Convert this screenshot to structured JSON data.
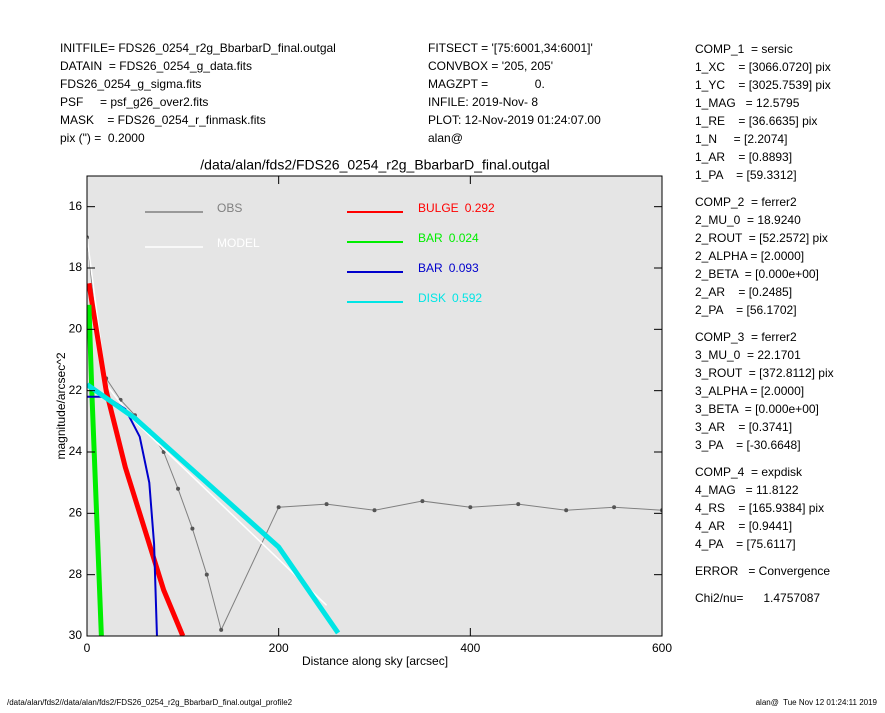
{
  "header": {
    "left": [
      "INITFILE= FDS26_0254_r2g_BbarbarD_final.outgal",
      "DATAIN  = FDS26_0254_g_data.fits",
      "FDS26_0254_g_sigma.fits",
      "PSF     = psf_g26_over2.fits",
      "MASK    = FDS26_0254_r_finmask.fits",
      "pix (\") =  0.2000"
    ],
    "middle": [
      "FITSECT = '[75:6001,34:6001]'",
      "CONVBOX = '205, 205'",
      "MAGZPT =              0.",
      "INFILE: 2019-Nov- 8",
      "PLOT: 12-Nov-2019 01:24:07.00",
      "alan@"
    ]
  },
  "params": [
    [
      "COMP_1  = sersic",
      "1_XC    = [3066.0720] pix",
      "1_YC    = [3025.7539] pix",
      "1_MAG   = 12.5795",
      "1_RE    = [36.6635] pix",
      "1_N     = [2.2074]",
      "1_AR    = [0.8893]",
      "1_PA    = [59.3312]"
    ],
    [
      "COMP_2  = ferrer2",
      "2_MU_0  = 18.9240",
      "2_ROUT  = [52.2572] pix",
      "2_ALPHA = [2.0000]",
      "2_BETA  = [0.000e+00]",
      "2_AR    = [0.2485]",
      "2_PA    = [56.1702]"
    ],
    [
      "COMP_3  = ferrer2",
      "3_MU_0  = 22.1701",
      "3_ROUT  = [372.8112] pix",
      "3_ALPHA = [2.0000]",
      "3_BETA  = [0.000e+00]",
      "3_AR    = [0.3741]",
      "3_PA    = [-30.6648]"
    ],
    [
      "COMP_4  = expdisk",
      "4_MAG   = 11.8122",
      "4_RS    = [165.9384] pix",
      "4_AR    = [0.9441]",
      "4_PA    = [75.6117]"
    ],
    [
      "ERROR   = Convergence"
    ],
    [
      "Chi2/nu=      1.4757087"
    ]
  ],
  "footer": {
    "left": "/data/alan/fds2//data/alan/fds2/FDS26_0254_r2g_BbarbarD_final.outgal_profile2",
    "right": "alan@  Tue Nov 12 01:24:11 2019"
  },
  "chart_data": {
    "type": "line",
    "title": "/data/alan/fds2/FDS26_0254_r2g_BbarbarD_final.outgal",
    "xlabel": "Distance along sky [arcsec]",
    "ylabel": "magnitude/arcsec^2",
    "xlim": [
      0,
      600
    ],
    "xticks": [
      0,
      200,
      400,
      600
    ],
    "ylim": [
      30,
      15
    ],
    "yticks": [
      16,
      18,
      20,
      22,
      24,
      26,
      28,
      30
    ],
    "series": [
      {
        "name": "OBS",
        "color": "#808080",
        "x": [
          0,
          10,
          20,
          35,
          50,
          65,
          80,
          95,
          110,
          125,
          140,
          200,
          250,
          300,
          350,
          400,
          450,
          500,
          550,
          600
        ],
        "values": [
          17,
          20,
          21.6,
          22.3,
          22.8,
          23.3,
          24,
          25.2,
          26.5,
          28,
          29.8,
          25.8,
          25.7,
          25.9,
          25.6,
          25.8,
          25.7,
          25.9,
          25.8,
          25.9
        ]
      },
      {
        "name": "MODEL",
        "color": "#ffffff",
        "x": [
          0,
          20,
          50,
          100,
          150,
          200,
          250
        ],
        "values": [
          17,
          21.8,
          23,
          24.5,
          26,
          27.5,
          29
        ]
      },
      {
        "name": "BULGE",
        "fraction": 0.292,
        "color": "#ff0000",
        "x": [
          2,
          20,
          40,
          60,
          80,
          100
        ],
        "values": [
          18.5,
          22,
          24.5,
          26.5,
          28.5,
          30
        ]
      },
      {
        "name": "BAR",
        "fraction": 0.024,
        "color": "#00ee00",
        "x": [
          2,
          5,
          10,
          15
        ],
        "values": [
          19.2,
          22,
          26,
          30
        ]
      },
      {
        "name": "BAR",
        "fraction": 0.093,
        "color": "#0000cc",
        "x": [
          0,
          20,
          40,
          55,
          65,
          70,
          73
        ],
        "values": [
          22.2,
          22.2,
          22.6,
          23.5,
          25,
          27,
          30
        ]
      },
      {
        "name": "DISK",
        "fraction": 0.592,
        "color": "#00e5e5",
        "x": [
          0,
          50,
          100,
          150,
          200,
          262
        ],
        "values": [
          21.8,
          22.9,
          24.3,
          25.7,
          27.1,
          29.9
        ]
      }
    ]
  }
}
